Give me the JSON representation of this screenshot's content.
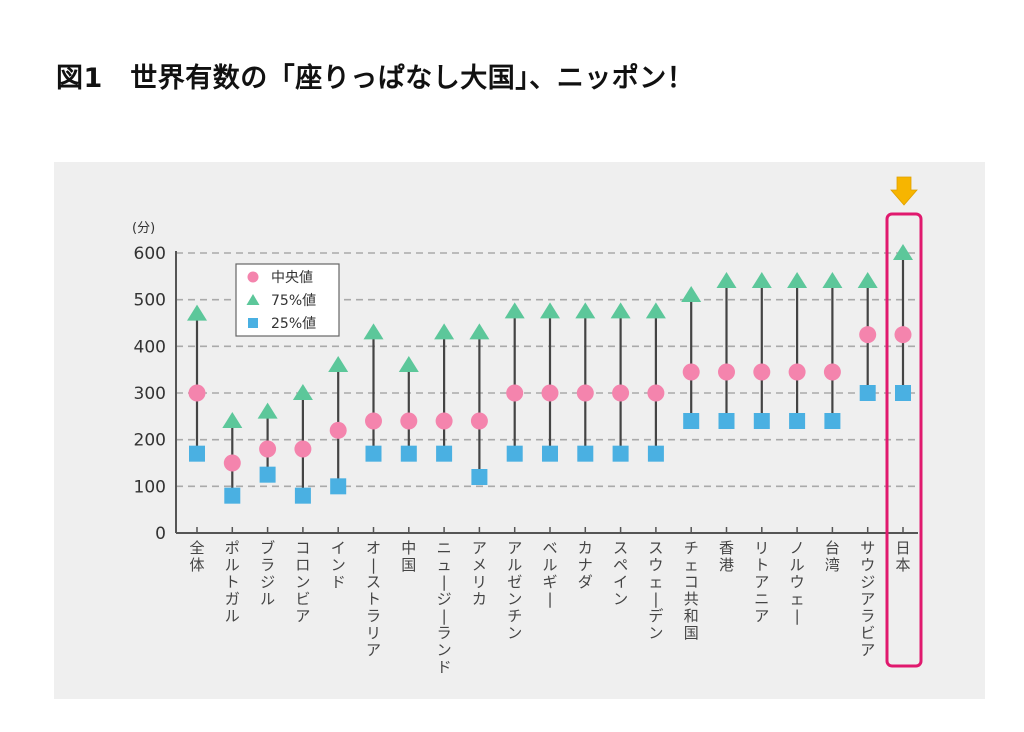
{
  "page": {
    "title": "図1　世界有数の「座りっぱなし大国」、ニッポン！"
  },
  "chart_data": {
    "type": "scatter",
    "title": "図1　世界有数の「座りっぱなし大国」、ニッポン！",
    "ylabel": "(分)",
    "xlabel": "",
    "ylim": [
      0,
      600
    ],
    "yticks": [
      0,
      100,
      200,
      300,
      400,
      500,
      600
    ],
    "grid": true,
    "legend_position": "top-left",
    "highlight": "日本",
    "colors": {
      "median": "#f484ad",
      "p75": "#5cc79a",
      "p25": "#4ab0e2",
      "highlight_box": "#e0196e",
      "arrow": "#f7b500",
      "stem": "#444444",
      "grid": "#aaaaaa"
    },
    "categories": [
      "全体",
      "ポルトガル",
      "ブラジル",
      "コロンビア",
      "インド",
      "オーストラリア",
      "中国",
      "ニュージーランド",
      "アメリカ",
      "アルゼンチン",
      "ベルギー",
      "カナダ",
      "スペイン",
      "スウェーデン",
      "チェコ共和国",
      "香港",
      "リトアニア",
      "ノルウェー",
      "台湾",
      "サウジアラビア",
      "日本"
    ],
    "series": [
      {
        "name": "中央値",
        "marker": "circle",
        "values": [
          300,
          150,
          180,
          180,
          220,
          240,
          240,
          240,
          240,
          300,
          300,
          300,
          300,
          300,
          345,
          345,
          345,
          345,
          345,
          425,
          425
        ]
      },
      {
        "name": "75%値",
        "marker": "triangle",
        "values": [
          470,
          240,
          260,
          300,
          360,
          430,
          360,
          430,
          430,
          475,
          475,
          475,
          475,
          475,
          510,
          540,
          540,
          540,
          540,
          540,
          600
        ]
      },
      {
        "name": "25%値",
        "marker": "square",
        "values": [
          170,
          80,
          125,
          80,
          100,
          170,
          170,
          170,
          120,
          170,
          170,
          170,
          170,
          170,
          240,
          240,
          240,
          240,
          240,
          300,
          300
        ]
      }
    ]
  }
}
